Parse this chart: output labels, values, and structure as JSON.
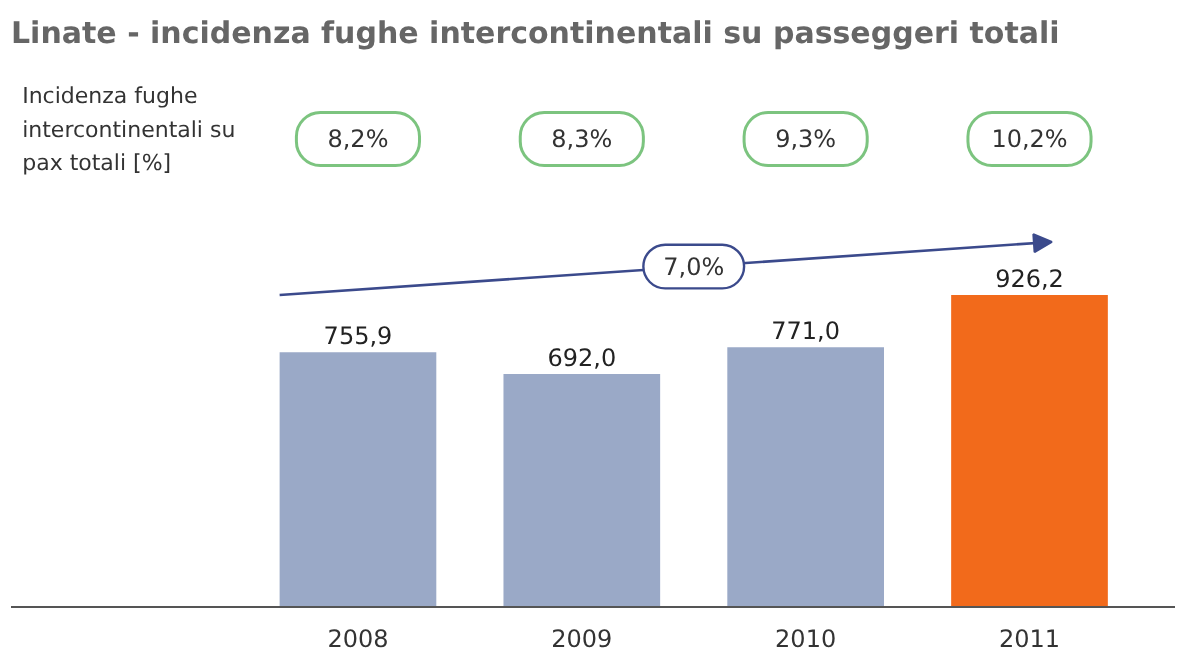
{
  "chart_data": {
    "type": "bar",
    "title": "Linate - incidenza fughe intercontinentali su passeggeri totali",
    "categories": [
      "2008",
      "2009",
      "2010",
      "2011"
    ],
    "values": [
      755.9,
      692.0,
      771.0,
      926.2
    ],
    "colors": [
      "#9aa9c7",
      "#9aa9c7",
      "#9aa9c7",
      "#f26a1b"
    ],
    "value_labels": [
      "755,9",
      "692,0",
      "771,0",
      "926,2"
    ],
    "annotations": [
      "Incidenza fughe intercontinentali su pax totali [%]",
      "8,2%",
      "8,3%",
      "9,3%",
      "10,2%",
      "7,0%"
    ],
    "grid": false
  }
}
